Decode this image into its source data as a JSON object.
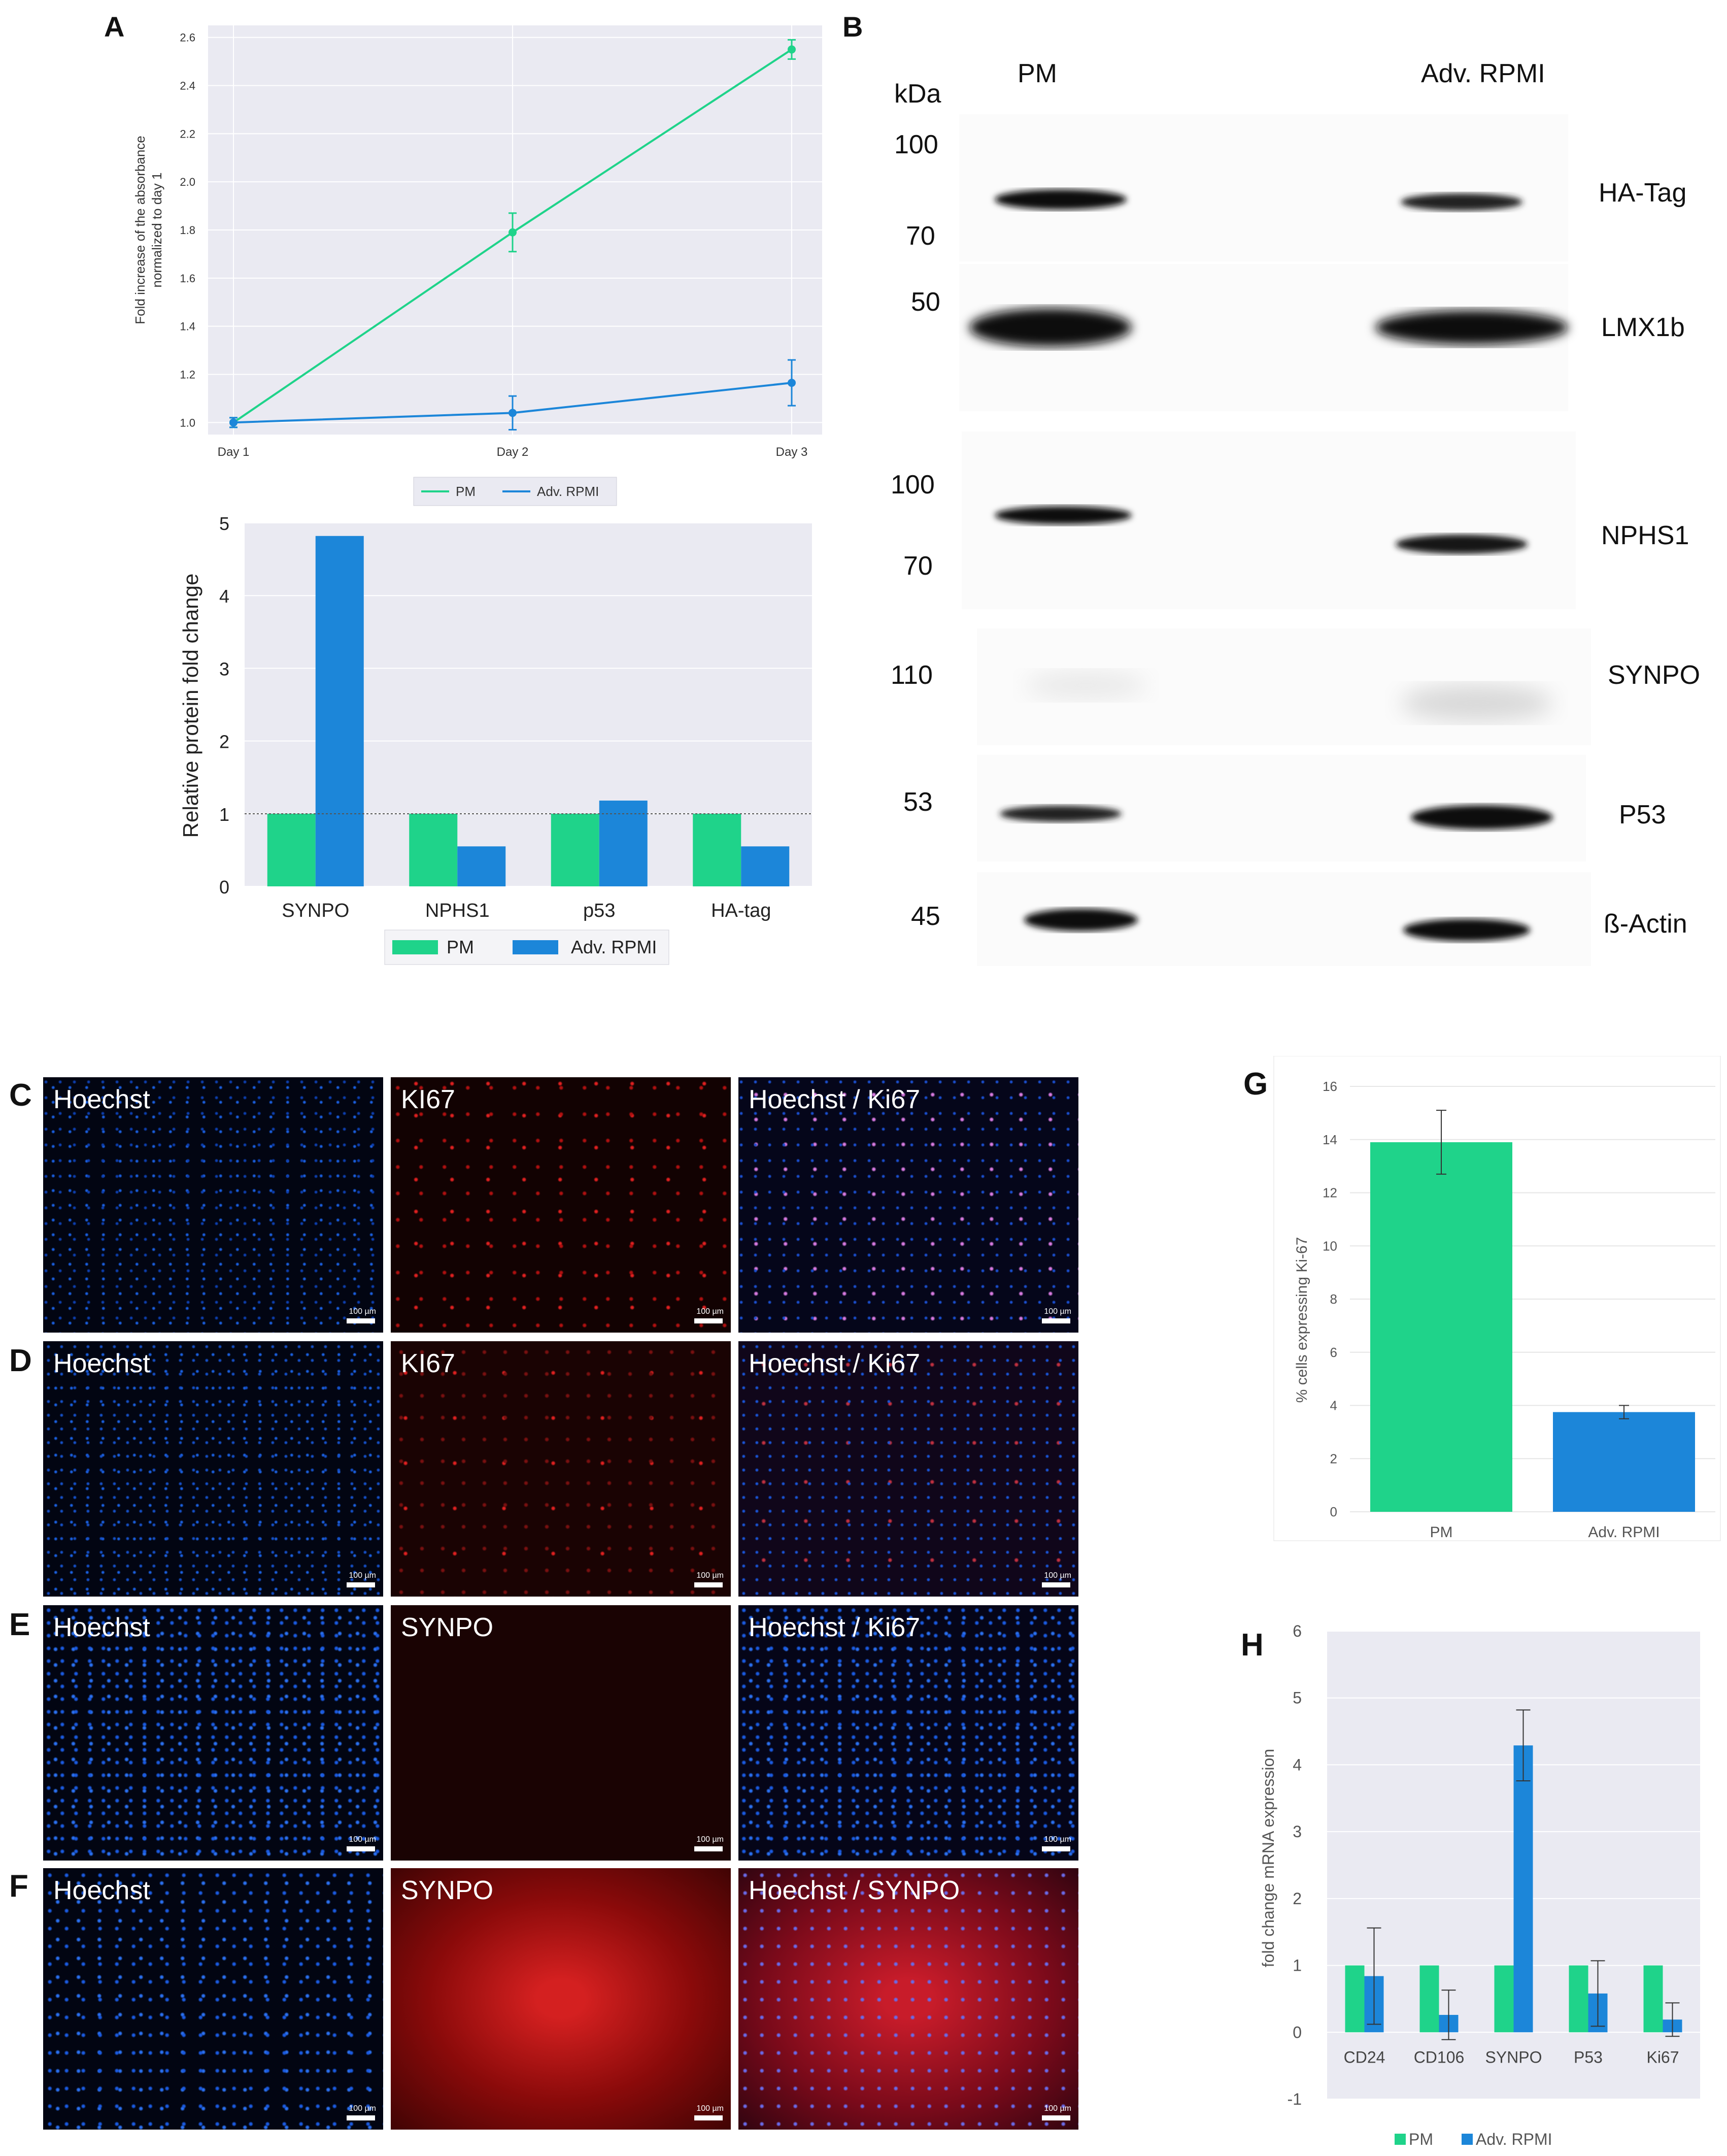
{
  "panel_labels": {
    "a": "A",
    "b": "B",
    "c": "C",
    "d": "D",
    "e": "E",
    "f": "F",
    "g": "G",
    "h": "H"
  },
  "colors": {
    "pm": "#1fd38a",
    "adv": "#1c86d9",
    "plot_bg": "#eaeaf2"
  },
  "chart_data": [
    {
      "panel": "A-top",
      "type": "line",
      "x": [
        "Day 1",
        "Day 2",
        "Day 3"
      ],
      "series": [
        {
          "name": "PM",
          "values": [
            1.0,
            1.79,
            2.55
          ],
          "errors": [
            0.02,
            0.08,
            0.04
          ]
        },
        {
          "name": "Adv. RPMI",
          "values": [
            1.0,
            1.04,
            1.165
          ],
          "errors": [
            0.02,
            0.07,
            0.095
          ]
        }
      ],
      "ylabel_line1": "Fold increase of the absorbance",
      "ylabel_line2": "normalized to day 1",
      "ylim": [
        0.95,
        2.65
      ],
      "yticks": [
        "1.0",
        "1.2",
        "1.4",
        "1.6",
        "1.8",
        "2.0",
        "2.2",
        "2.4",
        "2.6"
      ],
      "legend": [
        "PM",
        "Adv. RPMI"
      ]
    },
    {
      "panel": "A-bottom",
      "type": "bar",
      "categories": [
        "SYNPO",
        "NPHS1",
        "p53",
        "HA-tag"
      ],
      "series": [
        {
          "name": "PM",
          "values": [
            1,
            1,
            1,
            1
          ]
        },
        {
          "name": "Adv. RPMI",
          "values": [
            4.82,
            0.55,
            1.18,
            0.55
          ]
        }
      ],
      "ylabel": "Relative protein fold change",
      "ylim": [
        0,
        5
      ],
      "yticks": [
        "0",
        "1",
        "2",
        "3",
        "4",
        "5"
      ],
      "legend": [
        "PM",
        "Adv. RPMI"
      ]
    },
    {
      "panel": "G",
      "type": "bar",
      "categories": [
        "PM",
        "Adv. RPMI"
      ],
      "values": [
        13.9,
        3.75
      ],
      "errors": [
        1.2,
        0.25
      ],
      "ylabel": "% cells expressing Ki-67",
      "ylim": [
        0,
        16
      ],
      "yticks": [
        "0",
        "2",
        "4",
        "6",
        "8",
        "10",
        "12",
        "14",
        "16"
      ]
    },
    {
      "panel": "H",
      "type": "bar",
      "categories": [
        "CD24",
        "CD106",
        "SYNPO",
        "P53",
        "Ki67"
      ],
      "series": [
        {
          "name": "PM",
          "values": [
            1,
            1,
            1,
            1,
            1
          ]
        },
        {
          "name": "Adv. RPMI",
          "values": [
            0.84,
            0.26,
            4.29,
            0.58,
            0.19
          ],
          "errors": [
            0.72,
            0.37,
            0.53,
            0.49,
            0.25
          ]
        }
      ],
      "ylabel": "fold change mRNA expression",
      "ylim": [
        -1,
        6
      ],
      "yticks": [
        "-1",
        "0",
        "1",
        "2",
        "3",
        "4",
        "5",
        "6"
      ],
      "legend": [
        "PM",
        "Adv. RPMI"
      ]
    }
  ],
  "western_blot": {
    "kda_label": "kDa",
    "lane_labels": [
      "PM",
      "Adv. RPMI"
    ],
    "markers": [
      "100",
      "70",
      "50",
      "100",
      "70",
      "110",
      "53",
      "45"
    ],
    "targets": [
      "HA-Tag",
      "LMX1b",
      "NPHS1",
      "SYNPO",
      "P53",
      "ß-Actin"
    ]
  },
  "micrographs": {
    "row_c": [
      "Hoechst",
      "KI67",
      "Hoechst / Ki67"
    ],
    "row_d": [
      "Hoechst",
      "KI67",
      "Hoechst / Ki67"
    ],
    "row_e": [
      "Hoechst",
      "SYNPO",
      "Hoechst / Ki67"
    ],
    "row_f": [
      "Hoechst",
      "SYNPO",
      "Hoechst / SYNPO"
    ],
    "scale_bar": "100 µm"
  }
}
